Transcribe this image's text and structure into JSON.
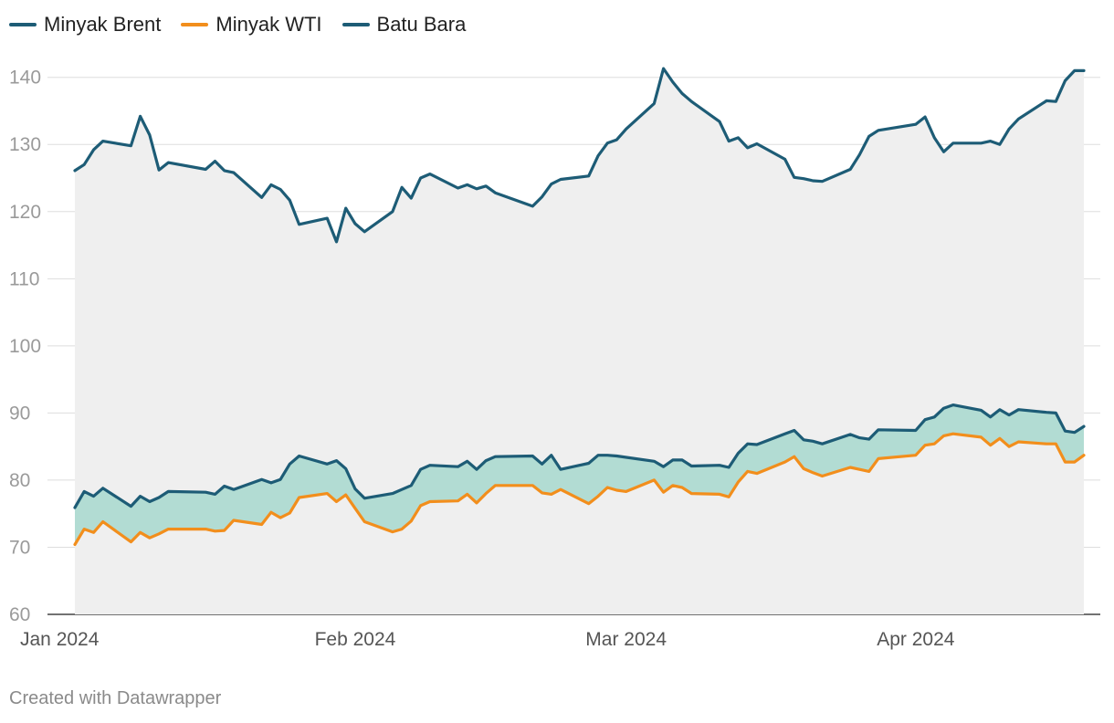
{
  "chart_data": {
    "type": "line",
    "title": "",
    "xlabel": "",
    "ylabel": "",
    "ylim": [
      60,
      142
    ],
    "y_ticks": [
      60,
      70,
      80,
      90,
      100,
      110,
      120,
      130,
      140
    ],
    "x_range": [
      "2024-01-01",
      "2024-04-19"
    ],
    "x_ticks": [
      {
        "date": "2024-01-01",
        "label": "Jan 2024"
      },
      {
        "date": "2024-02-01",
        "label": "Feb 2024"
      },
      {
        "date": "2024-03-01",
        "label": "Mar 2024"
      },
      {
        "date": "2024-04-01",
        "label": "Apr 2024"
      }
    ],
    "grid": true,
    "legend_position": "top-left",
    "fill_between": [
      "Minyak Brent",
      "Minyak WTI"
    ],
    "series": [
      {
        "name": "Minyak Brent",
        "color": "#1d5c76",
        "points": [
          [
            "2024-01-02",
            75.9
          ],
          [
            "2024-01-03",
            78.3
          ],
          [
            "2024-01-04",
            77.6
          ],
          [
            "2024-01-05",
            78.8
          ],
          [
            "2024-01-08",
            76.1
          ],
          [
            "2024-01-09",
            77.6
          ],
          [
            "2024-01-10",
            76.8
          ],
          [
            "2024-01-11",
            77.4
          ],
          [
            "2024-01-12",
            78.3
          ],
          [
            "2024-01-16",
            78.2
          ],
          [
            "2024-01-17",
            77.9
          ],
          [
            "2024-01-18",
            79.1
          ],
          [
            "2024-01-19",
            78.6
          ],
          [
            "2024-01-22",
            80.1
          ],
          [
            "2024-01-23",
            79.6
          ],
          [
            "2024-01-24",
            80.1
          ],
          [
            "2024-01-25",
            82.4
          ],
          [
            "2024-01-26",
            83.6
          ],
          [
            "2024-01-29",
            82.4
          ],
          [
            "2024-01-30",
            82.9
          ],
          [
            "2024-01-31",
            81.7
          ],
          [
            "2024-02-01",
            78.7
          ],
          [
            "2024-02-02",
            77.3
          ],
          [
            "2024-02-05",
            78.0
          ],
          [
            "2024-02-06",
            78.6
          ],
          [
            "2024-02-07",
            79.2
          ],
          [
            "2024-02-08",
            81.6
          ],
          [
            "2024-02-09",
            82.2
          ],
          [
            "2024-02-12",
            82.0
          ],
          [
            "2024-02-13",
            82.8
          ],
          [
            "2024-02-14",
            81.6
          ],
          [
            "2024-02-15",
            82.9
          ],
          [
            "2024-02-16",
            83.5
          ],
          [
            "2024-02-20",
            83.6
          ],
          [
            "2024-02-21",
            82.4
          ],
          [
            "2024-02-22",
            83.7
          ],
          [
            "2024-02-23",
            81.6
          ],
          [
            "2024-02-26",
            82.5
          ],
          [
            "2024-02-27",
            83.7
          ],
          [
            "2024-02-28",
            83.7
          ],
          [
            "2024-02-29",
            83.6
          ],
          [
            "2024-03-04",
            82.8
          ],
          [
            "2024-03-05",
            82.0
          ],
          [
            "2024-03-06",
            83.0
          ],
          [
            "2024-03-07",
            83.0
          ],
          [
            "2024-03-08",
            82.1
          ],
          [
            "2024-03-11",
            82.2
          ],
          [
            "2024-03-12",
            81.9
          ],
          [
            "2024-03-13",
            84.0
          ],
          [
            "2024-03-14",
            85.4
          ],
          [
            "2024-03-15",
            85.3
          ],
          [
            "2024-03-18",
            86.9
          ],
          [
            "2024-03-19",
            87.4
          ],
          [
            "2024-03-20",
            86.0
          ],
          [
            "2024-03-21",
            85.8
          ],
          [
            "2024-03-22",
            85.4
          ],
          [
            "2024-03-25",
            86.8
          ],
          [
            "2024-03-26",
            86.3
          ],
          [
            "2024-03-27",
            86.1
          ],
          [
            "2024-03-28",
            87.5
          ],
          [
            "2024-04-01",
            87.4
          ],
          [
            "2024-04-02",
            89.0
          ],
          [
            "2024-04-03",
            89.4
          ],
          [
            "2024-04-04",
            90.7
          ],
          [
            "2024-04-05",
            91.2
          ],
          [
            "2024-04-08",
            90.4
          ],
          [
            "2024-04-09",
            89.4
          ],
          [
            "2024-04-10",
            90.5
          ],
          [
            "2024-04-11",
            89.7
          ],
          [
            "2024-04-12",
            90.5
          ],
          [
            "2024-04-15",
            90.1
          ],
          [
            "2024-04-16",
            90.0
          ],
          [
            "2024-04-17",
            87.3
          ],
          [
            "2024-04-18",
            87.1
          ],
          [
            "2024-04-19",
            88.0
          ]
        ]
      },
      {
        "name": "Minyak WTI",
        "color": "#f28e1c",
        "points": [
          [
            "2024-01-02",
            70.4
          ],
          [
            "2024-01-03",
            72.7
          ],
          [
            "2024-01-04",
            72.2
          ],
          [
            "2024-01-05",
            73.8
          ],
          [
            "2024-01-08",
            70.8
          ],
          [
            "2024-01-09",
            72.2
          ],
          [
            "2024-01-10",
            71.4
          ],
          [
            "2024-01-11",
            72.0
          ],
          [
            "2024-01-12",
            72.7
          ],
          [
            "2024-01-16",
            72.7
          ],
          [
            "2024-01-17",
            72.4
          ],
          [
            "2024-01-18",
            72.5
          ],
          [
            "2024-01-19",
            74.0
          ],
          [
            "2024-01-22",
            73.4
          ],
          [
            "2024-01-23",
            75.2
          ],
          [
            "2024-01-24",
            74.4
          ],
          [
            "2024-01-25",
            75.1
          ],
          [
            "2024-01-26",
            77.4
          ],
          [
            "2024-01-29",
            78.0
          ],
          [
            "2024-01-30",
            76.8
          ],
          [
            "2024-01-31",
            77.8
          ],
          [
            "2024-02-01",
            75.8
          ],
          [
            "2024-02-02",
            73.8
          ],
          [
            "2024-02-05",
            72.3
          ],
          [
            "2024-02-06",
            72.7
          ],
          [
            "2024-02-07",
            73.9
          ],
          [
            "2024-02-08",
            76.2
          ],
          [
            "2024-02-09",
            76.8
          ],
          [
            "2024-02-12",
            76.9
          ],
          [
            "2024-02-13",
            77.9
          ],
          [
            "2024-02-14",
            76.6
          ],
          [
            "2024-02-15",
            78.0
          ],
          [
            "2024-02-16",
            79.2
          ],
          [
            "2024-02-20",
            79.2
          ],
          [
            "2024-02-21",
            78.1
          ],
          [
            "2024-02-22",
            77.9
          ],
          [
            "2024-02-23",
            78.6
          ],
          [
            "2024-02-26",
            76.5
          ],
          [
            "2024-02-27",
            77.6
          ],
          [
            "2024-02-28",
            78.9
          ],
          [
            "2024-02-29",
            78.5
          ],
          [
            "2024-03-01",
            78.3
          ],
          [
            "2024-03-04",
            80.0
          ],
          [
            "2024-03-05",
            78.2
          ],
          [
            "2024-03-06",
            79.2
          ],
          [
            "2024-03-07",
            78.9
          ],
          [
            "2024-03-08",
            78.0
          ],
          [
            "2024-03-11",
            77.9
          ],
          [
            "2024-03-12",
            77.5
          ],
          [
            "2024-03-13",
            79.7
          ],
          [
            "2024-03-14",
            81.3
          ],
          [
            "2024-03-15",
            81.0
          ],
          [
            "2024-03-18",
            82.7
          ],
          [
            "2024-03-19",
            83.5
          ],
          [
            "2024-03-20",
            81.7
          ],
          [
            "2024-03-21",
            81.1
          ],
          [
            "2024-03-22",
            80.6
          ],
          [
            "2024-03-25",
            81.9
          ],
          [
            "2024-03-26",
            81.6
          ],
          [
            "2024-03-27",
            81.3
          ],
          [
            "2024-03-28",
            83.2
          ],
          [
            "2024-04-01",
            83.7
          ],
          [
            "2024-04-02",
            85.2
          ],
          [
            "2024-04-03",
            85.4
          ],
          [
            "2024-04-04",
            86.6
          ],
          [
            "2024-04-05",
            86.9
          ],
          [
            "2024-04-08",
            86.4
          ],
          [
            "2024-04-09",
            85.2
          ],
          [
            "2024-04-10",
            86.2
          ],
          [
            "2024-04-11",
            85.0
          ],
          [
            "2024-04-12",
            85.7
          ],
          [
            "2024-04-15",
            85.4
          ],
          [
            "2024-04-16",
            85.4
          ],
          [
            "2024-04-17",
            82.7
          ],
          [
            "2024-04-18",
            82.7
          ],
          [
            "2024-04-19",
            83.7
          ]
        ]
      },
      {
        "name": "Batu Bara",
        "color": "#1d5c76",
        "points": [
          [
            "2024-01-02",
            126.1
          ],
          [
            "2024-01-03",
            127.0
          ],
          [
            "2024-01-04",
            129.2
          ],
          [
            "2024-01-05",
            130.5
          ],
          [
            "2024-01-08",
            129.8
          ],
          [
            "2024-01-09",
            134.2
          ],
          [
            "2024-01-10",
            131.4
          ],
          [
            "2024-01-11",
            126.2
          ],
          [
            "2024-01-12",
            127.3
          ],
          [
            "2024-01-16",
            126.3
          ],
          [
            "2024-01-17",
            127.5
          ],
          [
            "2024-01-18",
            126.1
          ],
          [
            "2024-01-19",
            125.8
          ],
          [
            "2024-01-22",
            122.1
          ],
          [
            "2024-01-23",
            124.0
          ],
          [
            "2024-01-24",
            123.3
          ],
          [
            "2024-01-25",
            121.7
          ],
          [
            "2024-01-26",
            118.1
          ],
          [
            "2024-01-29",
            119.0
          ],
          [
            "2024-01-30",
            115.5
          ],
          [
            "2024-01-31",
            120.5
          ],
          [
            "2024-02-01",
            118.2
          ],
          [
            "2024-02-02",
            117.0
          ],
          [
            "2024-02-05",
            120.0
          ],
          [
            "2024-02-06",
            123.6
          ],
          [
            "2024-02-07",
            122.0
          ],
          [
            "2024-02-08",
            125.0
          ],
          [
            "2024-02-09",
            125.6
          ],
          [
            "2024-02-12",
            123.5
          ],
          [
            "2024-02-13",
            124.0
          ],
          [
            "2024-02-14",
            123.4
          ],
          [
            "2024-02-15",
            123.8
          ],
          [
            "2024-02-16",
            122.8
          ],
          [
            "2024-02-20",
            120.8
          ],
          [
            "2024-02-21",
            122.2
          ],
          [
            "2024-02-22",
            124.1
          ],
          [
            "2024-02-23",
            124.8
          ],
          [
            "2024-02-26",
            125.3
          ],
          [
            "2024-02-27",
            128.3
          ],
          [
            "2024-02-28",
            130.2
          ],
          [
            "2024-02-29",
            130.7
          ],
          [
            "2024-03-01",
            132.3
          ],
          [
            "2024-03-04",
            136.1
          ],
          [
            "2024-03-05",
            141.3
          ],
          [
            "2024-03-06",
            139.3
          ],
          [
            "2024-03-07",
            137.6
          ],
          [
            "2024-03-08",
            136.4
          ],
          [
            "2024-03-11",
            133.4
          ],
          [
            "2024-03-12",
            130.5
          ],
          [
            "2024-03-13",
            131.0
          ],
          [
            "2024-03-14",
            129.5
          ],
          [
            "2024-03-15",
            130.1
          ],
          [
            "2024-03-18",
            127.8
          ],
          [
            "2024-03-19",
            125.1
          ],
          [
            "2024-03-20",
            124.9
          ],
          [
            "2024-03-21",
            124.6
          ],
          [
            "2024-03-22",
            124.5
          ],
          [
            "2024-03-25",
            126.3
          ],
          [
            "2024-03-26",
            128.5
          ],
          [
            "2024-03-27",
            131.2
          ],
          [
            "2024-03-28",
            132.1
          ],
          [
            "2024-04-01",
            133.0
          ],
          [
            "2024-04-02",
            134.1
          ],
          [
            "2024-04-03",
            131.0
          ],
          [
            "2024-04-04",
            128.9
          ],
          [
            "2024-04-05",
            130.2
          ],
          [
            "2024-04-08",
            130.2
          ],
          [
            "2024-04-09",
            130.5
          ],
          [
            "2024-04-10",
            130.0
          ],
          [
            "2024-04-11",
            132.3
          ],
          [
            "2024-04-12",
            133.8
          ],
          [
            "2024-04-15",
            136.5
          ],
          [
            "2024-04-16",
            136.4
          ],
          [
            "2024-04-17",
            139.5
          ],
          [
            "2024-04-18",
            141.0
          ],
          [
            "2024-04-19",
            141.0
          ]
        ]
      }
    ]
  },
  "footer": {
    "credit": "Created with Datawrapper"
  },
  "colors": {
    "grid": "#dddddd",
    "coal_fill": "#efefef",
    "brent_wti_fill": "#b2dcd3"
  }
}
